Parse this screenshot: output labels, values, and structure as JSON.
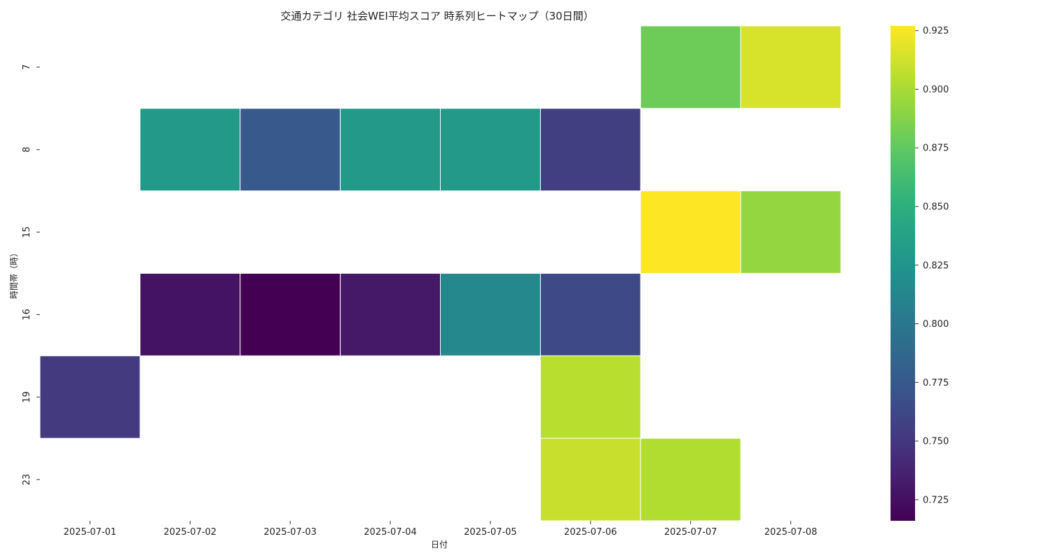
{
  "chart_data": {
    "type": "heatmap",
    "title": "交通カテゴリ 社会WEI平均スコア 時系列ヒートマップ（30日間）",
    "xlabel": "日付",
    "ylabel": "時間帯（時）",
    "x_categories": [
      "2025-07-01",
      "2025-07-02",
      "2025-07-03",
      "2025-07-04",
      "2025-07-05",
      "2025-07-06",
      "2025-07-07",
      "2025-07-08"
    ],
    "y_categories": [
      "7",
      "8",
      "15",
      "16",
      "19",
      "23"
    ],
    "values": [
      [
        null,
        null,
        null,
        null,
        null,
        null,
        0.88,
        0.915
      ],
      [
        null,
        0.83,
        0.775,
        0.83,
        0.83,
        0.755,
        null,
        null
      ],
      [
        null,
        null,
        null,
        null,
        null,
        null,
        0.927,
        0.893
      ],
      [
        null,
        0.727,
        0.716,
        0.73,
        0.815,
        0.763,
        null,
        null
      ],
      [
        0.752,
        null,
        null,
        null,
        null,
        0.905,
        null,
        null
      ],
      [
        null,
        null,
        null,
        null,
        null,
        0.91,
        0.903,
        null
      ]
    ],
    "colormap": "viridis",
    "colorbar": {
      "vmin": 0.716,
      "vmax": 0.927,
      "ticks": [
        0.725,
        0.75,
        0.775,
        0.8,
        0.825,
        0.85,
        0.875,
        0.9,
        0.925
      ],
      "tick_labels": [
        "0.725",
        "0.750",
        "0.775",
        "0.800",
        "0.825",
        "0.850",
        "0.875",
        "0.900",
        "0.925"
      ]
    },
    "grid": false,
    "legend": "colorbar-right"
  }
}
